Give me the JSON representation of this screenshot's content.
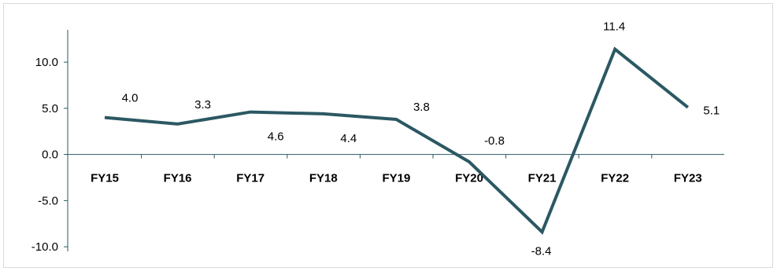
{
  "chart_data": {
    "type": "line",
    "title": "",
    "xlabel": "",
    "ylabel": "",
    "categories": [
      "FY15",
      "FY16",
      "FY17",
      "FY18",
      "FY19",
      "FY20",
      "FY21",
      "FY22",
      "FY23"
    ],
    "series": [
      {
        "values": [
          4.0,
          3.3,
          4.6,
          4.4,
          3.8,
          -0.8,
          -8.4,
          11.4,
          5.1
        ],
        "color": "#2b5863"
      }
    ],
    "data_labels": [
      "4.0",
      "3.3",
      "4.6",
      "4.4",
      "3.8",
      "-0.8",
      "-8.4",
      "11.4",
      "5.1"
    ],
    "y_ticks": [
      {
        "value": 10,
        "label": "10.0"
      },
      {
        "value": 5,
        "label": "5.0"
      },
      {
        "value": 0,
        "label": "0.0"
      },
      {
        "value": -5,
        "label": "-5.0"
      },
      {
        "value": -10,
        "label": "-10.0"
      }
    ],
    "ylim": [
      -10.5,
      13.5
    ],
    "grid": false,
    "legend": "none",
    "axis_color": "#2b5863"
  }
}
